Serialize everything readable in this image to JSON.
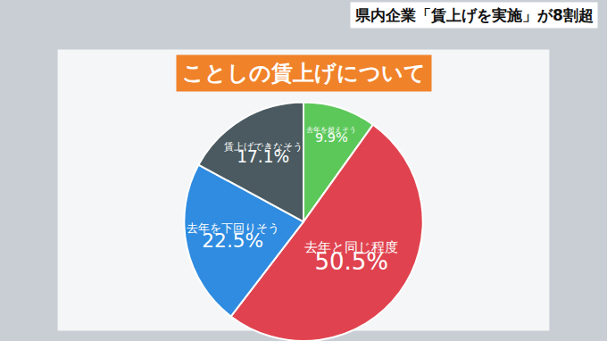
{
  "chart_data": {
    "type": "pie",
    "title": "ことしの賃上げについて",
    "subtitle": "県内企業「賃上げを実施」が8割超",
    "categories": [
      "去年を超えそう",
      "去年と同じ程度",
      "去年を下回りそう",
      "賃上げできなそう"
    ],
    "values": [
      9.9,
      50.5,
      22.5,
      17.1
    ],
    "value_labels": [
      "9.9%",
      "50.5%",
      "22.5%",
      "17.1%"
    ],
    "colors": [
      "#5cc85a",
      "#e0434f",
      "#2f8ce0",
      "#4a5a60"
    ],
    "data_labels": true
  }
}
